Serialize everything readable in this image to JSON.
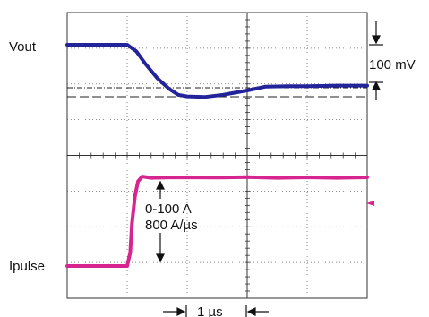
{
  "chart_data": {
    "type": "line",
    "title": "",
    "xlabel": "",
    "ylabel": "",
    "grid": true,
    "time_per_div": "1 µs",
    "voltage_per_div": "100 mV",
    "pulse_annotation": [
      "0-100 A",
      "800 A/µs"
    ],
    "series": [
      {
        "name": "Vout",
        "color": "#23239a",
        "x_div": [
          0,
          1.0,
          1.15,
          1.3,
          1.5,
          1.7,
          1.85,
          2.0,
          2.3,
          2.6,
          3.0,
          3.3,
          3.7,
          4.0,
          4.5,
          5.0
        ],
        "y_div": [
          0,
          0,
          -0.12,
          -0.35,
          -0.62,
          -0.82,
          -0.93,
          -0.96,
          -0.97,
          -0.93,
          -0.85,
          -0.78,
          -0.77,
          -0.77,
          -0.76,
          -0.76
        ]
      },
      {
        "name": "Ipulse",
        "color": "#d8248f",
        "x_div": [
          0,
          1.0,
          1.05,
          1.08,
          1.13,
          1.18,
          1.25,
          1.4,
          1.8,
          2.5,
          3.0,
          3.5,
          4.0,
          4.5,
          5.0
        ],
        "y_div": [
          0,
          0,
          0.5,
          1.6,
          2.6,
          3.15,
          3.33,
          3.28,
          3.3,
          3.29,
          3.31,
          3.28,
          3.3,
          3.28,
          3.3
        ]
      }
    ]
  },
  "labels": {
    "vout": "Vout",
    "ipulse": "Ipulse",
    "volt_scale": "100 mV",
    "pulse_line1": "0-100 A",
    "pulse_line2": "800 A/µs",
    "time_scale": "1 µs"
  },
  "colors": {
    "vout": "#23239a",
    "ipulse": "#d8248f",
    "grid": "#444444"
  }
}
